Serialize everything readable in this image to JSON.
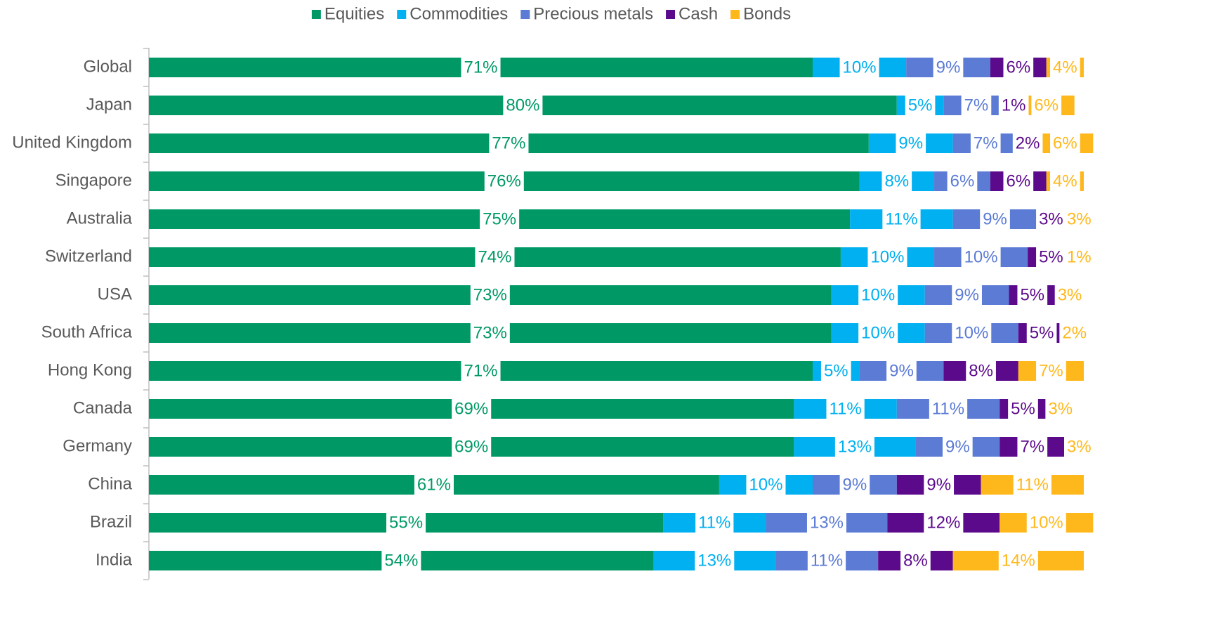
{
  "chart_data": {
    "type": "stacked-barh",
    "categories": [
      "Global",
      "Japan",
      "United Kingdom",
      "Singapore",
      "Australia",
      "Switzerland",
      "USA",
      "South Africa",
      "Hong Kong",
      "Canada",
      "Germany",
      "China",
      "Brazil",
      "India"
    ],
    "xlim": [
      0,
      100
    ],
    "legend": "top",
    "series": [
      {
        "name": "Equities",
        "color": "#009966",
        "values": [
          71,
          80,
          77,
          76,
          75,
          74,
          73,
          73,
          71,
          69,
          69,
          61,
          55,
          54
        ],
        "value_labels": [
          "71%",
          "80%",
          "77%",
          "76%",
          "75%",
          "74%",
          "73%",
          "73%",
          "71%",
          "69%",
          "69%",
          "61%",
          "55%",
          "54%"
        ]
      },
      {
        "name": "Commodities",
        "color": "#00b0f0",
        "values": [
          10,
          5,
          9,
          8,
          11,
          10,
          10,
          10,
          5,
          11,
          13,
          10,
          11,
          13
        ],
        "value_labels": [
          "10%",
          "5%",
          "9%",
          "8%",
          "11%",
          "10%",
          "10%",
          "10%",
          "5%",
          "11%",
          "13%",
          "10%",
          "11%",
          "13%"
        ]
      },
      {
        "name": "Precious metals",
        "color": "#5b7bd5",
        "values": [
          9,
          7,
          7,
          6,
          9,
          10,
          9,
          10,
          9,
          11,
          9,
          9,
          13,
          11
        ],
        "value_labels": [
          "9%",
          "7%",
          "7%",
          "6%",
          "9%",
          "10%",
          "9%",
          "10%",
          "9%",
          "11%",
          "9%",
          "9%",
          "13%",
          "11%"
        ]
      },
      {
        "name": "Cash",
        "color": "#5c0a8c",
        "values": [
          6,
          1,
          2,
          6,
          3,
          5,
          5,
          5,
          8,
          5,
          7,
          9,
          12,
          8
        ],
        "value_labels": [
          "6%",
          "1%",
          "2%",
          "6%",
          "3%",
          "5%",
          "5%",
          "5%",
          "8%",
          "5%",
          "7%",
          "9%",
          "12%",
          "8%"
        ]
      },
      {
        "name": "Bonds",
        "color": "#ffb81c",
        "values": [
          4,
          6,
          6,
          4,
          3,
          1,
          3,
          2,
          7,
          3,
          3,
          11,
          10,
          14
        ],
        "value_labels": [
          "4%",
          "6%",
          "6%",
          "4%",
          "3%",
          "1%",
          "3%",
          "2%",
          "7%",
          "3%",
          "3%",
          "11%",
          "10%",
          "14%"
        ]
      }
    ]
  }
}
